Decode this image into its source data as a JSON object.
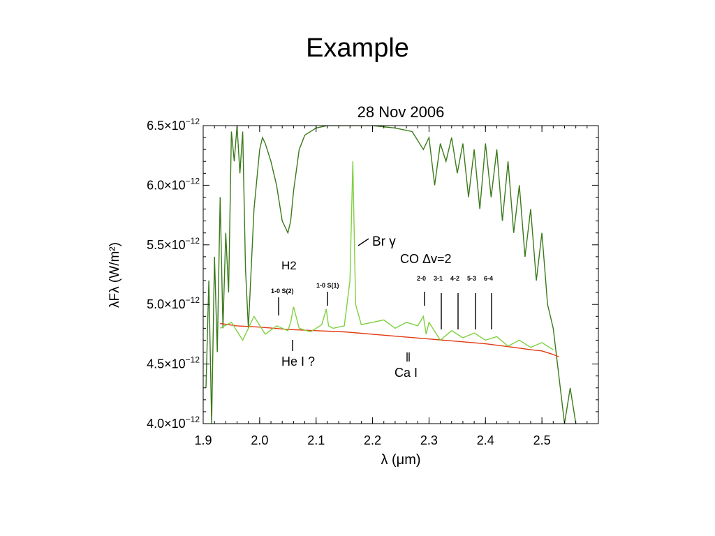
{
  "slide_title": "Example",
  "chart_data": {
    "type": "line",
    "title": "28 Nov 2006",
    "xlabel": "λ (μm)",
    "ylabel": "λF<sub>λ</sub> (W/m²)",
    "xlim": [
      1.9,
      2.6
    ],
    "ylim": [
      4e-12,
      6.5e-12
    ],
    "x_ticks": [
      1.9,
      2.0,
      2.1,
      2.2,
      2.3,
      2.4,
      2.5
    ],
    "x_tick_labels": [
      "1.9",
      "2.0",
      "2.1",
      "2.2",
      "2.3",
      "2.4",
      "2.5"
    ],
    "y_tick_labels": [
      {
        "mantissa": "4.0",
        "value": 4e-12
      },
      {
        "mantissa": "4.5",
        "value": 4.5e-12
      },
      {
        "mantissa": "5.0",
        "value": 5e-12
      },
      {
        "mantissa": "5.5",
        "value": 5.5e-12
      },
      {
        "mantissa": "6.0",
        "value": 6e-12
      },
      {
        "mantissa": "6.5",
        "value": 6.5e-12
      }
    ],
    "y_exp_base": "×10",
    "y_exponent": "−12",
    "series": [
      {
        "color": "#3a7a1a",
        "x": [
          1.905,
          1.91,
          1.915,
          1.92,
          1.925,
          1.93,
          1.935,
          1.94,
          1.945,
          1.95,
          1.955,
          1.96,
          1.965,
          1.97,
          1.975,
          1.98,
          1.99,
          2.0,
          2.005,
          2.01,
          2.02,
          2.03,
          2.04,
          2.05,
          2.055,
          2.06,
          2.07,
          2.08,
          2.1,
          2.12,
          2.14,
          2.16,
          2.2,
          2.24,
          2.27,
          2.29,
          2.3,
          2.31,
          2.32,
          2.33,
          2.34,
          2.35,
          2.36,
          2.37,
          2.38,
          2.39,
          2.4,
          2.41,
          2.42,
          2.43,
          2.44,
          2.45,
          2.46,
          2.47,
          2.48,
          2.49,
          2.5,
          2.51,
          2.52,
          2.53,
          2.54,
          2.55,
          2.56
        ],
        "y": [
          4.3e-12,
          5.2e-12,
          4e-12,
          5.4e-12,
          4.6e-12,
          5.9e-12,
          4.8e-12,
          5.6e-12,
          5.1e-12,
          6.45e-12,
          6.2e-12,
          6.5e-12,
          6.1e-12,
          6.45e-12,
          5.3e-12,
          4.8e-12,
          5.8e-12,
          6.3e-12,
          6.4e-12,
          6.35e-12,
          6.2e-12,
          6e-12,
          5.7e-12,
          5.6e-12,
          5.7e-12,
          5.95e-12,
          6.3e-12,
          6.42e-12,
          6.48e-12,
          6.5e-12,
          6.5e-12,
          6.5e-12,
          6.5e-12,
          6.48e-12,
          6.45e-12,
          6.3e-12,
          6.4e-12,
          6e-12,
          6.35e-12,
          6.2e-12,
          6.4e-12,
          6.1e-12,
          6.35e-12,
          5.9e-12,
          6.3e-12,
          5.8e-12,
          6.35e-12,
          5.9e-12,
          6.3e-12,
          5.7e-12,
          6.2e-12,
          5.6e-12,
          6e-12,
          5.4e-12,
          5.8e-12,
          5.2e-12,
          5.6e-12,
          5e-12,
          4.8e-12,
          4.4e-12,
          4e-12,
          4.3e-12,
          4e-12
        ]
      },
      {
        "color": "#e03a10",
        "x": [
          1.93,
          1.96,
          2.0,
          2.05,
          2.1,
          2.15,
          2.2,
          2.25,
          2.3,
          2.35,
          2.4,
          2.45,
          2.48,
          2.5,
          2.52,
          2.53
        ],
        "y": [
          4.84e-12,
          4.82e-12,
          4.81e-12,
          4.79e-12,
          4.78e-12,
          4.77e-12,
          4.75e-12,
          4.73e-12,
          4.71e-12,
          4.69e-12,
          4.67e-12,
          4.64e-12,
          4.62e-12,
          4.61e-12,
          4.58e-12,
          4.56e-12
        ]
      },
      {
        "color": "#7fd040",
        "x": [
          1.93,
          1.95,
          1.97,
          1.99,
          2.01,
          2.03,
          2.05,
          2.055,
          2.06,
          2.07,
          2.09,
          2.11,
          2.118,
          2.122,
          2.13,
          2.15,
          2.16,
          2.165,
          2.17,
          2.18,
          2.2,
          2.22,
          2.24,
          2.26,
          2.28,
          2.29,
          2.295,
          2.3,
          2.32,
          2.34,
          2.36,
          2.38,
          2.4,
          2.42,
          2.44,
          2.46,
          2.48,
          2.5,
          2.52
        ],
        "y": [
          4.8e-12,
          4.85e-12,
          4.7e-12,
          4.9e-12,
          4.75e-12,
          4.82e-12,
          4.78e-12,
          4.85e-12,
          4.98e-12,
          4.8e-12,
          4.77e-12,
          4.83e-12,
          4.96e-12,
          4.82e-12,
          4.8e-12,
          4.82e-12,
          5.2e-12,
          6.2e-12,
          5e-12,
          4.83e-12,
          4.85e-12,
          4.87e-12,
          4.8e-12,
          4.85e-12,
          4.82e-12,
          4.9e-12,
          4.75e-12,
          4.85e-12,
          4.7e-12,
          4.78e-12,
          4.72e-12,
          4.76e-12,
          4.7e-12,
          4.73e-12,
          4.65e-12,
          4.7e-12,
          4.64e-12,
          4.68e-12,
          4.62e-12
        ]
      }
    ],
    "annotations": {
      "br_gamma": "Br γ",
      "co_label": "CO Δv=2",
      "h2_label": "H2",
      "h2_s2": "1-0 S(2)",
      "h2_s1": "1-0 S(1)",
      "co_bands": [
        "2-0",
        "3-1",
        "4-2",
        "5-3",
        "6-4"
      ],
      "hei": "He I ?",
      "cai": "Ca I"
    },
    "grid": false
  }
}
